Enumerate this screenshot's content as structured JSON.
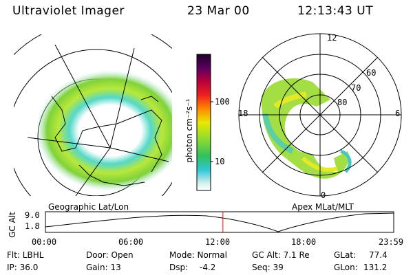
{
  "header": {
    "instrument": "Ultraviolet Imager",
    "date": "23 Mar 00",
    "time": "12:13:43 UT"
  },
  "left_panel": {
    "caption": "Geographic Lat/Lon"
  },
  "colorbar": {
    "unit_label": "photon cm⁻²s⁻¹",
    "ticks": [
      "100",
      "10"
    ],
    "scale": "log"
  },
  "right_panel": {
    "caption": "Apex MLat/MLT",
    "mlt_labels": {
      "top": "12",
      "left": "18",
      "right": "6",
      "bottom": "0"
    },
    "mlat_labels": [
      "60",
      "70",
      "80"
    ]
  },
  "altitude_plot": {
    "ylabel": "GC Alt",
    "yticks": [
      "9.0",
      "1.8"
    ],
    "xticks": [
      "00:00",
      "06:00",
      "12:00",
      "18:00",
      "23:59"
    ],
    "current_time_hours": 12.23,
    "marker_color": "#ff0000"
  },
  "status": {
    "flt": "Flt: LBHL",
    "door": "Door: Open",
    "mode": "Mode: Normal",
    "gcalt": "GC Alt: 7.1 Re",
    "glat": "GLat:",
    "glat_val": "77.4",
    "ip": "IP: 36.0",
    "gain": "Gain: 13",
    "dsp": "Dsp:",
    "dsp_val": "-4.2",
    "seq": "Seq: 39",
    "glon": "GLon:",
    "glon_val": "131.2"
  }
}
